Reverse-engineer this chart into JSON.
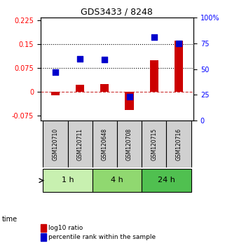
{
  "title": "GDS3433 / 8248",
  "samples": [
    "GSM120710",
    "GSM120711",
    "GSM120648",
    "GSM120708",
    "GSM120715",
    "GSM120716"
  ],
  "log10_ratio": [
    -0.01,
    0.022,
    0.026,
    -0.056,
    0.1,
    0.162
  ],
  "percentile_rank": [
    47,
    60,
    59,
    23,
    81,
    75
  ],
  "groups": [
    {
      "label": "1 h",
      "indices": [
        0,
        1
      ],
      "color": "#c8f0b0"
    },
    {
      "label": "4 h",
      "indices": [
        2,
        3
      ],
      "color": "#90d870"
    },
    {
      "label": "24 h",
      "indices": [
        4,
        5
      ],
      "color": "#50c050"
    }
  ],
  "bar_color": "#cc0000",
  "dot_color": "#0000cc",
  "ylim_left": [
    -0.09,
    0.235
  ],
  "ylim_right": [
    0,
    100
  ],
  "yticks_left": [
    -0.075,
    0,
    0.075,
    0.15,
    0.225
  ],
  "ytick_labels_left": [
    "-0.075",
    "0",
    "0.075",
    "0.15",
    "0.225"
  ],
  "yticks_right": [
    0,
    25,
    50,
    75,
    100
  ],
  "ytick_labels_right": [
    "0",
    "25",
    "50",
    "75",
    "100%"
  ],
  "hline_dotted": [
    0.075,
    0.15
  ],
  "hline_dashed": 0.0,
  "sample_box_color": "#d0d0d0",
  "time_label": "time",
  "legend_bar_label": "log10 ratio",
  "legend_dot_label": "percentile rank within the sample",
  "background_color": "#ffffff"
}
